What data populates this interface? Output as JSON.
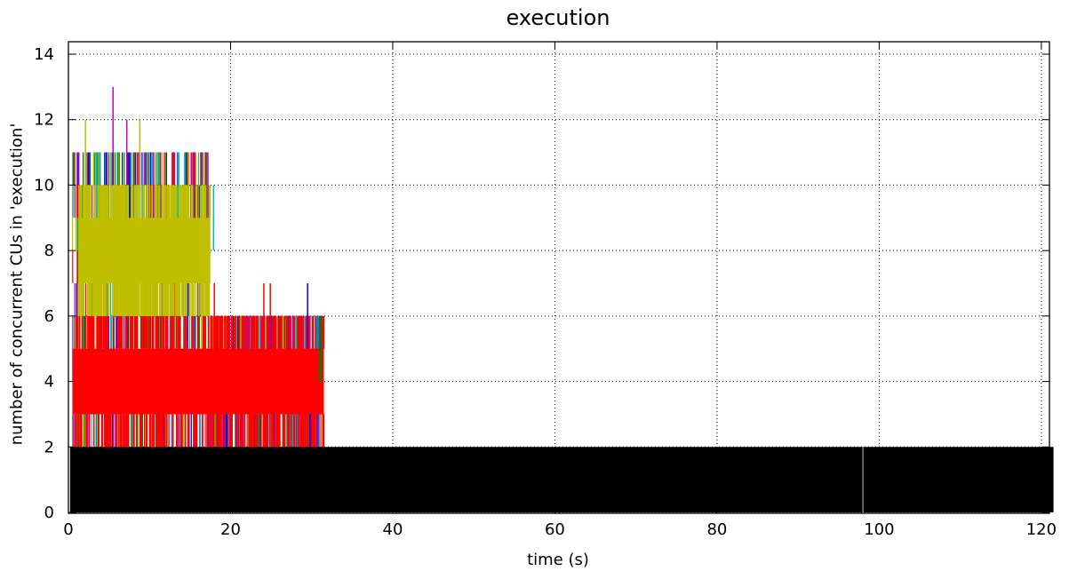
{
  "chart_data": {
    "type": "line",
    "title": "execution",
    "xlabel": "time (s)",
    "ylabel": "number of concurrent CUs in 'execution'",
    "xlim": [
      0,
      121
    ],
    "ylim": [
      0,
      14
    ],
    "xticks": [
      0,
      20,
      40,
      60,
      80,
      100,
      120
    ],
    "yticks": [
      0,
      2,
      4,
      6,
      8,
      10,
      12,
      14
    ],
    "grid": true,
    "series_colors": [
      "#000000",
      "#ff0000",
      "#0000ff",
      "#008000",
      "#bf00bf",
      "#00bfbf",
      "#bfbf00"
    ],
    "bands": [
      {
        "color": "#000000",
        "x": [
          0.2,
          121.5
        ],
        "low": 0,
        "high": 2
      },
      {
        "color": "#ff0000",
        "x": [
          0.5,
          31.5
        ],
        "low": 3,
        "high": 5
      },
      {
        "color": "#bfbf00",
        "x": [
          1.2,
          17.5
        ],
        "low": 7,
        "high": 9
      }
    ],
    "spikes": [
      {
        "color": "#bf00bf",
        "x": 5.5,
        "y": 13
      },
      {
        "color": "#bfbf00",
        "x": 2.1,
        "y": 12
      },
      {
        "color": "#bf00bf",
        "x": 7.2,
        "y": 12
      },
      {
        "color": "#bfbf00",
        "x": 8.8,
        "y": 12
      },
      {
        "color": "#00bfbf",
        "x": 3.5,
        "y": 11
      },
      {
        "color": "#bf00bf",
        "x": 10.5,
        "y": 11
      },
      {
        "color": "#00bfbf",
        "x": 13.5,
        "y": 11
      },
      {
        "color": "#bf00bf",
        "x": 15.5,
        "y": 11
      },
      {
        "color": "#bf00bf",
        "x": 17.2,
        "y": 11
      },
      {
        "color": "#00bfbf",
        "x": 17.9,
        "y": 10
      },
      {
        "color": "#0000ff",
        "x": 29.5,
        "y": 7
      },
      {
        "color": "#ff0000",
        "x": 24.1,
        "y": 7
      },
      {
        "color": "#ff0000",
        "x": 24.9,
        "y": 7
      },
      {
        "color": "#ff0000",
        "x": 18.0,
        "y": 7
      },
      {
        "color": "#008000",
        "x": 31.0,
        "y": 6
      },
      {
        "color": "#008000",
        "x": 31.2,
        "y": 6
      },
      {
        "color": "#808080",
        "x": 98.0,
        "y": 2
      }
    ],
    "cluster_colors": [
      "#ff0000",
      "#0000ff",
      "#008000",
      "#bf00bf",
      "#00bfbf",
      "#bfbf00"
    ],
    "cluster_ranges": [
      {
        "x": [
          0.5,
          17.5
        ],
        "low": 1,
        "high": 11
      },
      {
        "x": [
          17.5,
          31.5
        ],
        "low": 1,
        "high": 6
      }
    ]
  }
}
